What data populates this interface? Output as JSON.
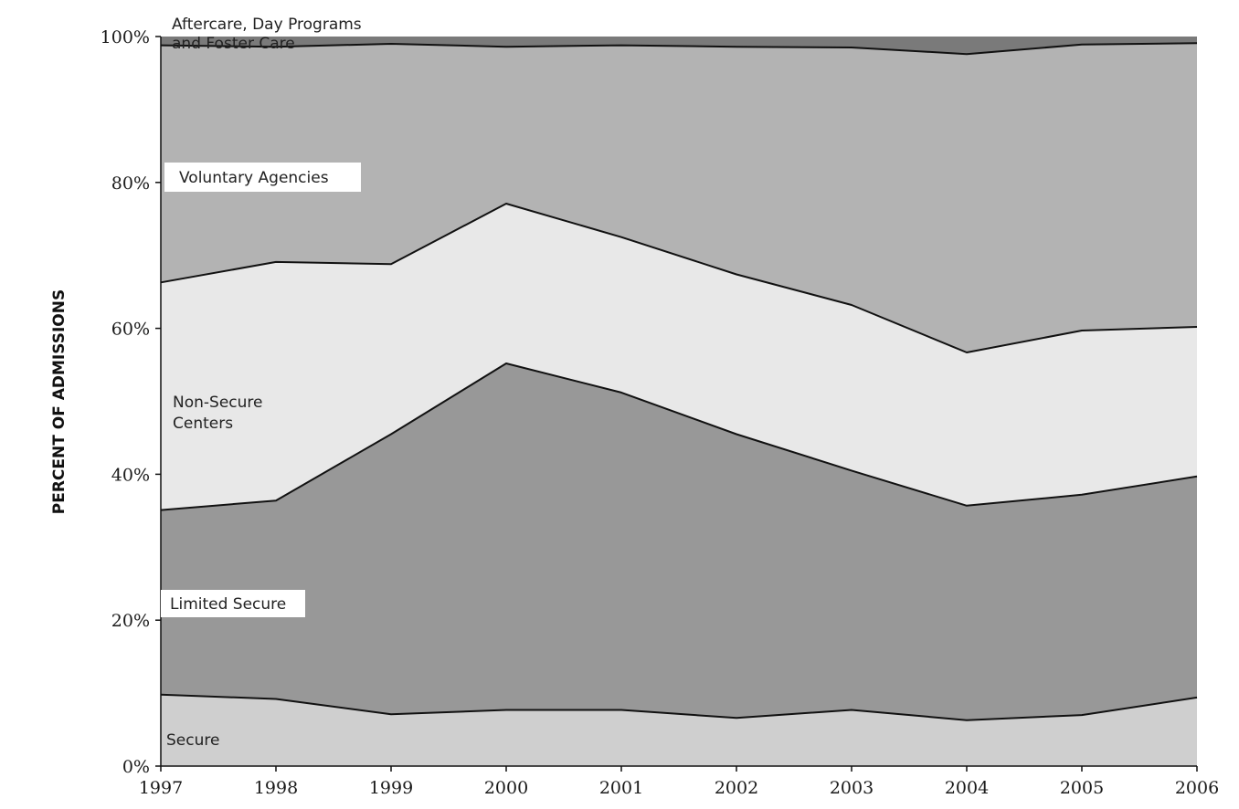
{
  "chart_data": {
    "type": "area",
    "stacked": true,
    "percent": true,
    "title": "",
    "xlabel": "",
    "ylabel": "PERCENT OF ADMISSIONS",
    "x": [
      "1997",
      "1998",
      "1999",
      "2000",
      "2001",
      "2002",
      "2003",
      "2004",
      "2005",
      "2006"
    ],
    "ylim": [
      0,
      100
    ],
    "yticks": [
      "0%",
      "20%",
      "40%",
      "60%",
      "80%",
      "100%"
    ],
    "grid": false,
    "legend": "inline labels",
    "series": [
      {
        "name": "Secure",
        "color": "#cfcfcf",
        "values": [
          9.8,
          9.2,
          7.1,
          7.7,
          7.7,
          6.6,
          7.7,
          6.3,
          7.0,
          9.4
        ]
      },
      {
        "name": "Limited Secure",
        "color": "#989898",
        "values": [
          25.3,
          27.2,
          38.4,
          47.5,
          43.5,
          38.9,
          32.8,
          29.4,
          30.2,
          30.3
        ]
      },
      {
        "name": "Non-Secure Centers",
        "color": "#e8e8e8",
        "values": [
          31.2,
          32.7,
          23.3,
          21.9,
          21.3,
          21.9,
          22.7,
          21.0,
          22.5,
          20.5
        ]
      },
      {
        "name": "Voluntary Agencies",
        "color": "#b3b3b3",
        "values": [
          32.5,
          29.5,
          30.2,
          21.5,
          26.3,
          31.2,
          35.3,
          40.9,
          39.2,
          38.9
        ]
      },
      {
        "name": "Aftercare, Day Programs and Foster Care",
        "color": "#7a7a7a",
        "values": [
          1.2,
          1.4,
          1.0,
          1.4,
          1.2,
          1.4,
          1.5,
          2.4,
          1.1,
          0.9
        ]
      }
    ],
    "labels": {
      "aftercare_line1": "Aftercare, Day Programs",
      "aftercare_line2": "and Foster Care",
      "voluntary": "Voluntary Agencies",
      "nonsecure_line1": "Non-Secure",
      "nonsecure_line2": "Centers",
      "limited": "Limited Secure",
      "secure": "Secure"
    }
  }
}
